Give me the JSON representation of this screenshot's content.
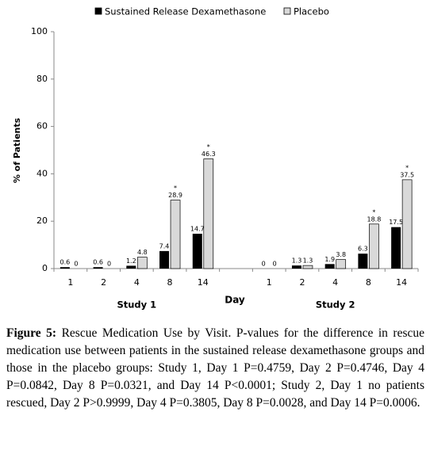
{
  "chart_data": {
    "type": "bar",
    "y_label": "% of Patients",
    "x_label": "Day",
    "categories": [
      "1",
      "2",
      "4",
      "8",
      "14",
      null,
      "1",
      "2",
      "4",
      "8",
      "14"
    ],
    "group_labels": [
      "Study 1",
      "Study 2"
    ],
    "series": [
      {
        "name": "Sustained Release Dexamethasone",
        "color": "#000000",
        "values": [
          0.6,
          0.6,
          1.2,
          7.4,
          14.7,
          null,
          0,
          1.3,
          1.9,
          6.3,
          17.5
        ]
      },
      {
        "name": "Placebo",
        "color": "#d9d9d9",
        "values": [
          0,
          0,
          4.8,
          28.9,
          46.3,
          null,
          0,
          1.3,
          3.8,
          18.8,
          37.5
        ],
        "marker_labels": [
          null,
          null,
          null,
          "*",
          "*",
          null,
          null,
          null,
          null,
          "*",
          "*"
        ]
      }
    ],
    "ylim": [
      0,
      100
    ],
    "yticks": [
      0,
      20,
      40,
      60,
      80,
      100
    ],
    "grid": false
  },
  "caption": {
    "label": "Figure 5:",
    "text": "Rescue Medication Use by Visit. P-values for the difference in rescue medication use between patients in the sustained release dexamethasone groups and those in the placebo groups: Study 1, Day 1 P=0.4759, Day 2 P=0.4746, Day 4 P=0.0842, Day 8 P=0.0321, and Day 14 P<0.0001; Study 2, Day 1 no patients rescued, Day 2 P>0.9999, Day 4 P=0.3805, Day 8 P=0.0028, and Day 14 P=0.0006."
  }
}
